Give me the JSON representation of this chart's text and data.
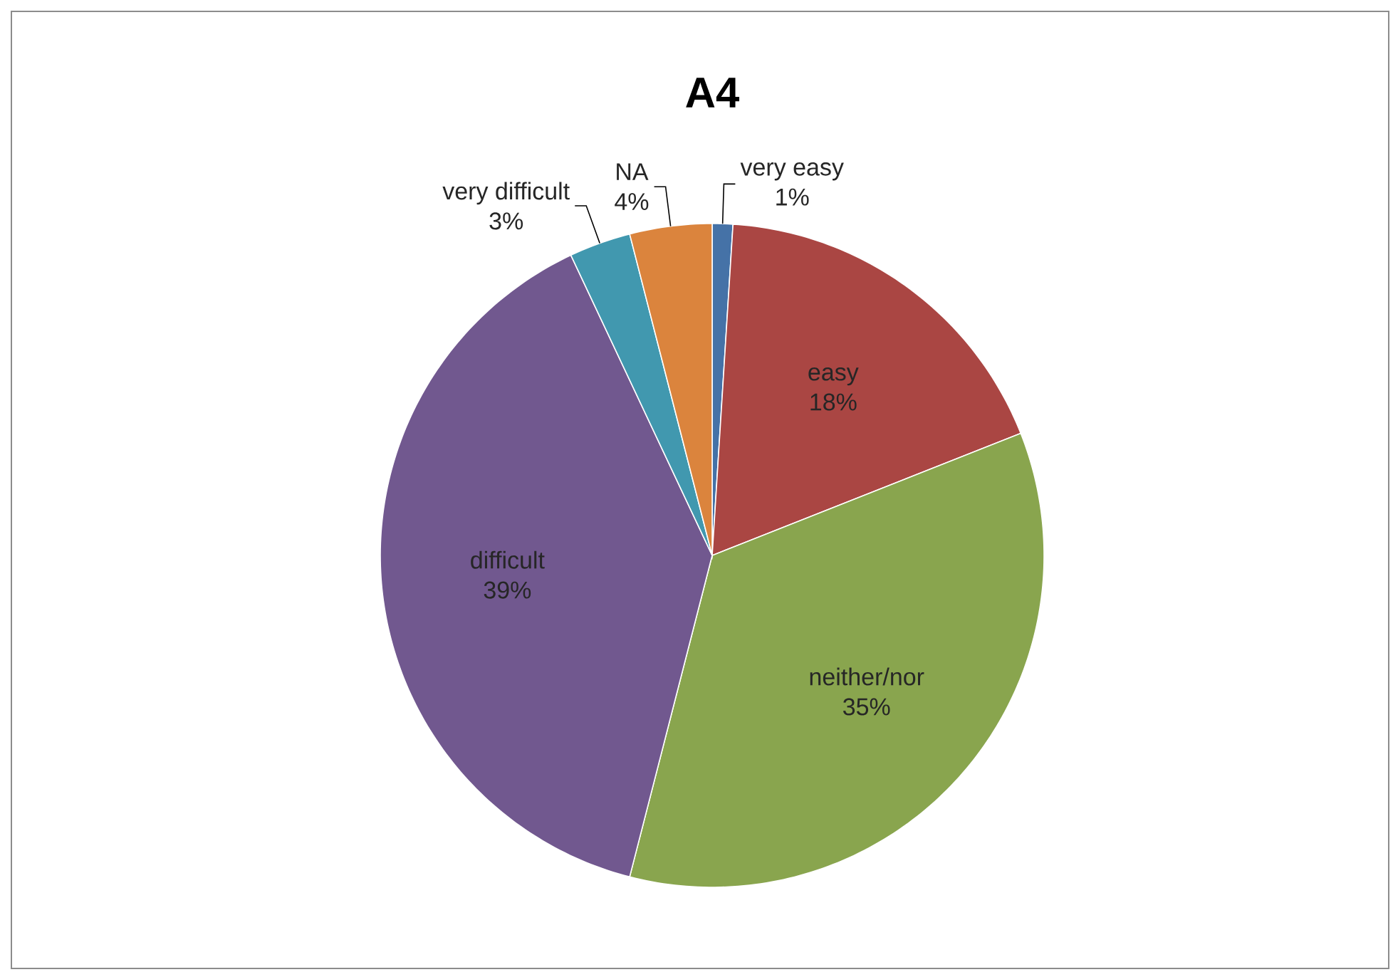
{
  "chart_data": {
    "type": "pie",
    "title": "A4",
    "categories": [
      "very easy",
      "easy",
      "neither/nor",
      "difficult",
      "very difficult",
      "NA"
    ],
    "values": [
      1,
      18,
      35,
      39,
      3,
      4
    ],
    "value_labels": [
      "1%",
      "18%",
      "35%",
      "39%",
      "3%",
      "4%"
    ],
    "colors": [
      "#4572a7",
      "#aa4643",
      "#89a54e",
      "#71588f",
      "#4198af",
      "#db843d"
    ]
  }
}
